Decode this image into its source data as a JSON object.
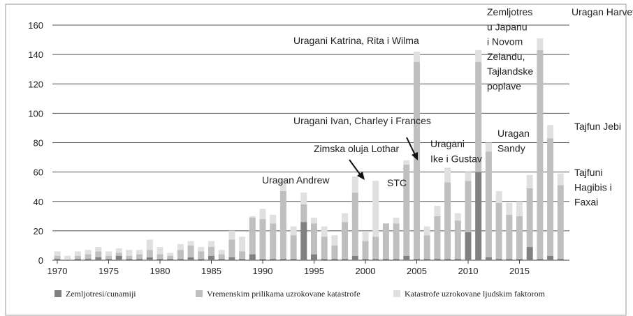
{
  "chart_data": {
    "type": "bar",
    "stacked": true,
    "categories": [
      "1970",
      null,
      null,
      null,
      null,
      "1975",
      null,
      null,
      null,
      null,
      "1980",
      null,
      null,
      null,
      null,
      "1985",
      null,
      null,
      null,
      null,
      "1990",
      null,
      null,
      null,
      null,
      "1995",
      null,
      null,
      null,
      null,
      "2000",
      null,
      null,
      null,
      null,
      "2005",
      null,
      null,
      null,
      null,
      "2010",
      null,
      null,
      null,
      null,
      "2015",
      null,
      null,
      null,
      null
    ],
    "series": [
      {
        "name": "Zemljotresi/cunamiji",
        "color": "#808080",
        "values": [
          1,
          0,
          1,
          1,
          2,
          1,
          3,
          1,
          1,
          2,
          1,
          1,
          1,
          2,
          1,
          3,
          1,
          2,
          1,
          4,
          1,
          1,
          1,
          1,
          26,
          4,
          1,
          1,
          1,
          3,
          1,
          1,
          1,
          1,
          3,
          1,
          1,
          1,
          1,
          1,
          19,
          60,
          2,
          1,
          1,
          1,
          9,
          1,
          3,
          1
        ]
      },
      {
        "name": "Vremenskim prilikama uzrokovane katastrofe",
        "color": "#bfbfbf",
        "values": [
          2,
          1,
          2,
          3,
          4,
          2,
          2,
          2,
          3,
          5,
          3,
          2,
          6,
          8,
          5,
          6,
          3,
          12,
          5,
          25,
          27,
          24,
          46,
          16,
          12,
          21,
          15,
          9,
          25,
          43,
          12,
          15,
          24,
          24,
          62,
          134,
          16,
          29,
          52,
          26,
          35,
          75,
          72,
          38,
          30,
          29,
          40,
          142,
          80,
          50
        ]
      },
      {
        "name": "Katastrofe uzrokovane ljudskim faktorom",
        "color": "#e0e0e0",
        "values": [
          3,
          2,
          3,
          3,
          3,
          3,
          3,
          4,
          3,
          7,
          5,
          2,
          4,
          3,
          3,
          4,
          3,
          6,
          10,
          1,
          7,
          6,
          8,
          6,
          8,
          4,
          7,
          7,
          6,
          11,
          6,
          38,
          0,
          4,
          3,
          7,
          6,
          7,
          10,
          5,
          6,
          8,
          6,
          8,
          8,
          10,
          9,
          8,
          9,
          8
        ]
      }
    ],
    "ylim": [
      0,
      160
    ],
    "yticks": [
      0,
      20,
      40,
      60,
      80,
      100,
      120,
      140,
      160
    ],
    "grid": true,
    "legend": "bottom",
    "annotations": [
      {
        "lines": [
          "Uragani Katrina, Rita i Wilma"
        ]
      },
      {
        "lines": [
          "Zemljotres",
          "u Japanu",
          "i Novom",
          "Zelandu,",
          "Tajlandske",
          "poplave"
        ]
      },
      {
        "lines": [
          "Uragan Harvey"
        ]
      },
      {
        "lines": [
          "Tajfun Jebi"
        ]
      },
      {
        "lines": [
          "Uragan",
          "Sandy"
        ]
      },
      {
        "lines": [
          "Uragani Ivan, Charley i Frances"
        ]
      },
      {
        "lines": [
          "Zimska oluja Lothar"
        ]
      },
      {
        "lines": [
          "Uragani",
          "Ike i Gustav"
        ]
      },
      {
        "lines": [
          "STC"
        ]
      },
      {
        "lines": [
          "Uragan Andrew"
        ]
      },
      {
        "lines": [
          "Tajfuni",
          "Hagibis i",
          "Faxai"
        ]
      }
    ]
  }
}
